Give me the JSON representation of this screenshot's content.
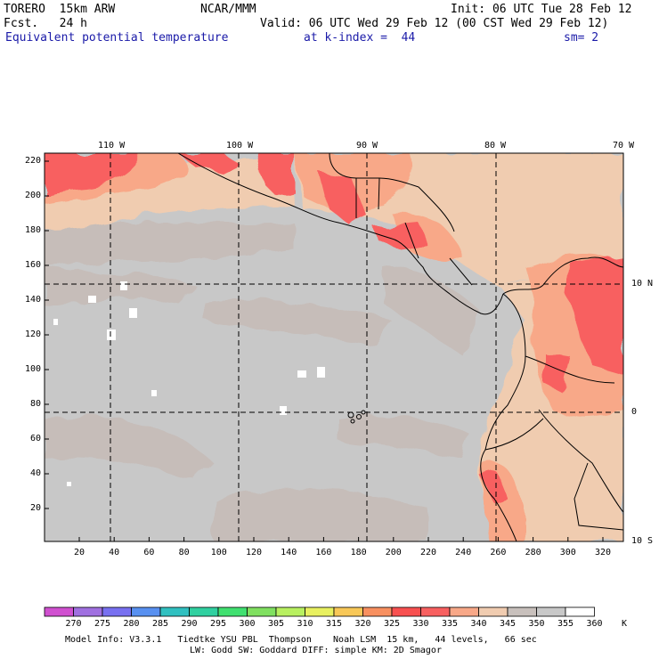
{
  "header": {
    "model": "TORERO  15km ARW",
    "org": "NCAR/MMM",
    "init": "Init: 06 UTC Tue 28 Feb 12",
    "fcst": "Fcst.   24 h",
    "valid": "Valid: 06 UTC Wed 29 Feb 12 (00 CST Wed 29 Feb 12)",
    "field": "Equivalent potential temperature",
    "level": "at k-index =  44",
    "smooth": "sm= 2"
  },
  "map": {
    "lon_labels": [
      "110 W",
      "100 W",
      "90 W",
      "80 W",
      "70 W"
    ],
    "lat_labels": [
      "10 N",
      "0",
      "10 S"
    ],
    "y_ticks": [
      "220",
      "200",
      "180",
      "160",
      "140",
      "120",
      "100",
      "80",
      "60",
      "40",
      "20"
    ],
    "x_ticks": [
      "20",
      "40",
      "60",
      "80",
      "100",
      "120",
      "140",
      "160",
      "180",
      "200",
      "220",
      "240",
      "260",
      "280",
      "300",
      "320"
    ]
  },
  "colorbar": {
    "labels": [
      "270",
      "275",
      "280",
      "285",
      "290",
      "295",
      "300",
      "305",
      "310",
      "315",
      "320",
      "325",
      "330",
      "335",
      "340",
      "345",
      "350",
      "355",
      "360"
    ],
    "unit": "K",
    "colors": [
      "#d050d0",
      "#a070e0",
      "#7870f0",
      "#5890f0",
      "#30c0c0",
      "#30d0a0",
      "#40e070",
      "#80e060",
      "#b8f060",
      "#e8f060",
      "#f8c858",
      "#f89060",
      "#f85050",
      "#f86060",
      "#f8a888",
      "#f0ccb0",
      "#c8c0bc",
      "#c8c8c8",
      "#ffffff"
    ]
  },
  "footer": {
    "line1": "Model Info: V3.3.1   Tiedtke YSU PBL  Thompson    Noah LSM  15 km,   44 levels,   66 sec",
    "line2": "LW: Godd SW: Goddard DIFF: simple KM: 2D Smagor"
  }
}
